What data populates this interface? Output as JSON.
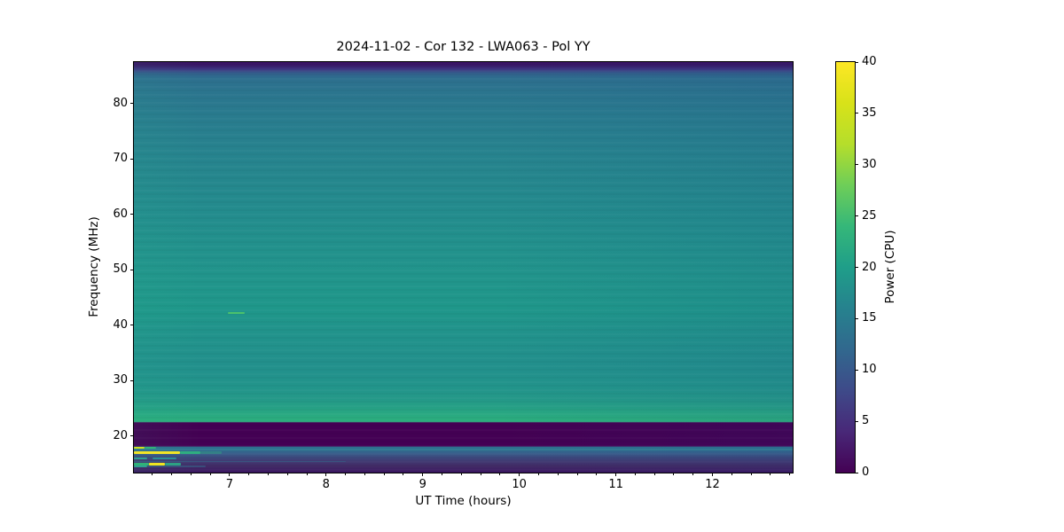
{
  "figure": {
    "title": "2024-11-02 - Cor 132 - LWA063 - Pol YY",
    "xlabel": "UT Time (hours)",
    "ylabel": "Frequency (MHz)",
    "colorbar_label": "Power (CPU)"
  },
  "chart_data": {
    "type": "heatmap",
    "subtype": "radio-dynamic-spectrum",
    "title": "2024-11-02 - Cor 132 - LWA063 - Pol YY",
    "xlabel": "UT Time (hours)",
    "ylabel": "Frequency (MHz)",
    "x_range_hours": [
      6.01,
      12.83
    ],
    "x_ticks": [
      7,
      8,
      9,
      10,
      11,
      12
    ],
    "x_minor_tick_step": 0.2,
    "y_range_mhz": [
      13.4,
      87.5
    ],
    "y_ticks": [
      20,
      30,
      40,
      50,
      60,
      70,
      80
    ],
    "grid": false,
    "legend": "colorbar-right",
    "colorbar": {
      "label": "Power (CPU)",
      "min": 0,
      "max": 40,
      "ticks": [
        0,
        5,
        10,
        15,
        20,
        25,
        30,
        35,
        40
      ],
      "colormap": "viridis",
      "colormap_stops": [
        [
          0.0,
          "#440154"
        ],
        [
          0.1,
          "#482878"
        ],
        [
          0.2,
          "#3e4a89"
        ],
        [
          0.3,
          "#31688e"
        ],
        [
          0.4,
          "#26828e"
        ],
        [
          0.5,
          "#1f9e89"
        ],
        [
          0.6,
          "#35b779"
        ],
        [
          0.7,
          "#6ece58"
        ],
        [
          0.8,
          "#b5de2b"
        ],
        [
          0.9,
          "#d8e219"
        ],
        [
          1.0,
          "#fde725"
        ]
      ]
    },
    "background_profile_note": "time-averaged spectrum: power (CPU) vs frequency, constant across time",
    "background_profile": [
      {
        "mhz": 87.5,
        "power": 1,
        "color": "#33095c"
      },
      {
        "mhz": 86.9,
        "power": 3,
        "color": "#3a1a69"
      },
      {
        "mhz": 86.2,
        "power": 7,
        "color": "#3d3580"
      },
      {
        "mhz": 85.4,
        "power": 12,
        "color": "#33628d"
      },
      {
        "mhz": 84.5,
        "power": 15,
        "color": "#2d6f8e"
      },
      {
        "mhz": 82.0,
        "power": 16,
        "color": "#2b758e"
      },
      {
        "mhz": 78.0,
        "power": 17,
        "color": "#297b8e"
      },
      {
        "mhz": 72.0,
        "power": 18,
        "color": "#27828e"
      },
      {
        "mhz": 66.0,
        "power": 19,
        "color": "#25878d"
      },
      {
        "mhz": 60.0,
        "power": 20,
        "color": "#238c8d"
      },
      {
        "mhz": 54.0,
        "power": 21,
        "color": "#22918c"
      },
      {
        "mhz": 48.0,
        "power": 22,
        "color": "#21958b"
      },
      {
        "mhz": 43.0,
        "power": 22.5,
        "color": "#1f978a"
      },
      {
        "mhz": 39.0,
        "power": 22,
        "color": "#21938b"
      },
      {
        "mhz": 33.0,
        "power": 21.5,
        "color": "#22908c"
      },
      {
        "mhz": 29.0,
        "power": 22,
        "color": "#22948b"
      },
      {
        "mhz": 26.5,
        "power": 23,
        "color": "#249988"
      },
      {
        "mhz": 25.0,
        "power": 24,
        "color": "#26a185"
      },
      {
        "mhz": 23.8,
        "power": 25,
        "color": "#29a981"
      },
      {
        "mhz": 22.6,
        "power": 26,
        "color": "#2cae7d"
      },
      {
        "mhz": 22.4,
        "power": 0,
        "color": "#440154"
      },
      {
        "mhz": 18.15,
        "power": 0,
        "color": "#440154"
      },
      {
        "mhz": 18.05,
        "power": 15,
        "color": "#2d718e"
      },
      {
        "mhz": 17.6,
        "power": 14,
        "color": "#2f6f8e"
      },
      {
        "mhz": 17.0,
        "power": 11,
        "color": "#36618c"
      },
      {
        "mhz": 16.3,
        "power": 8,
        "color": "#3c4d80"
      },
      {
        "mhz": 15.5,
        "power": 6,
        "color": "#403a72"
      },
      {
        "mhz": 14.5,
        "power": 4,
        "color": "#422a66"
      },
      {
        "mhz": 13.4,
        "power": 2,
        "color": "#391560"
      }
    ],
    "features": [
      {
        "name": "burst-dash",
        "mhz": 42.2,
        "t_start": 6.98,
        "t_end": 7.16,
        "power": 30,
        "color": "#4bc16c",
        "h": 2
      },
      {
        "name": "rfi-line",
        "mhz": 17.95,
        "t_start": 6.01,
        "t_end": 6.12,
        "power": 37,
        "color": "#cfe11e",
        "h": 2
      },
      {
        "name": "rfi-line",
        "mhz": 17.95,
        "t_start": 6.12,
        "t_end": 6.24,
        "power": 27,
        "color": "#31b277",
        "h": 2
      },
      {
        "name": "rfi-line",
        "mhz": 17.55,
        "t_start": 6.01,
        "t_end": 12.83,
        "power": 18,
        "color": "rgba(60,150,160,0.40)",
        "h": 2
      },
      {
        "name": "rfi-line",
        "mhz": 17.08,
        "t_start": 6.01,
        "t_end": 6.49,
        "power": 40,
        "color": "#f2e527",
        "h": 3
      },
      {
        "name": "rfi-line",
        "mhz": 17.08,
        "t_start": 6.49,
        "t_end": 6.7,
        "power": 26,
        "color": "#2fae80",
        "h": 3
      },
      {
        "name": "rfi-line",
        "mhz": 17.08,
        "t_start": 6.7,
        "t_end": 6.92,
        "power": 22,
        "color": "rgba(47,174,128,0.40)",
        "h": 3
      },
      {
        "name": "rfi-line",
        "mhz": 16.0,
        "t_start": 6.01,
        "t_end": 6.15,
        "power": 22,
        "color": "#2f9f92",
        "h": 2
      },
      {
        "name": "rfi-line",
        "mhz": 16.0,
        "t_start": 6.2,
        "t_end": 6.45,
        "power": 19,
        "color": "#2c8e96",
        "h": 2
      },
      {
        "name": "rfi-line",
        "mhz": 15.35,
        "t_start": 6.01,
        "t_end": 8.2,
        "power": 12,
        "color": "rgba(44,120,145,0.40)",
        "h": 1
      },
      {
        "name": "rfi-line",
        "mhz": 15.0,
        "t_start": 6.01,
        "t_end": 6.17,
        "power": 27,
        "color": "#30b277",
        "h": 3
      },
      {
        "name": "rfi-line",
        "mhz": 15.0,
        "t_start": 6.17,
        "t_end": 6.33,
        "power": 40,
        "color": "#f0e521",
        "h": 3
      },
      {
        "name": "rfi-line",
        "mhz": 15.0,
        "t_start": 6.33,
        "t_end": 6.5,
        "power": 24,
        "color": "#2da183",
        "h": 3
      },
      {
        "name": "rfi-line",
        "mhz": 14.45,
        "t_start": 6.01,
        "t_end": 6.15,
        "power": 22,
        "color": "#2f9f90",
        "h": 2
      },
      {
        "name": "rfi-line",
        "mhz": 14.45,
        "t_start": 6.15,
        "t_end": 6.75,
        "power": 13,
        "color": "rgba(51,112,143,0.50)",
        "h": 2
      }
    ]
  }
}
